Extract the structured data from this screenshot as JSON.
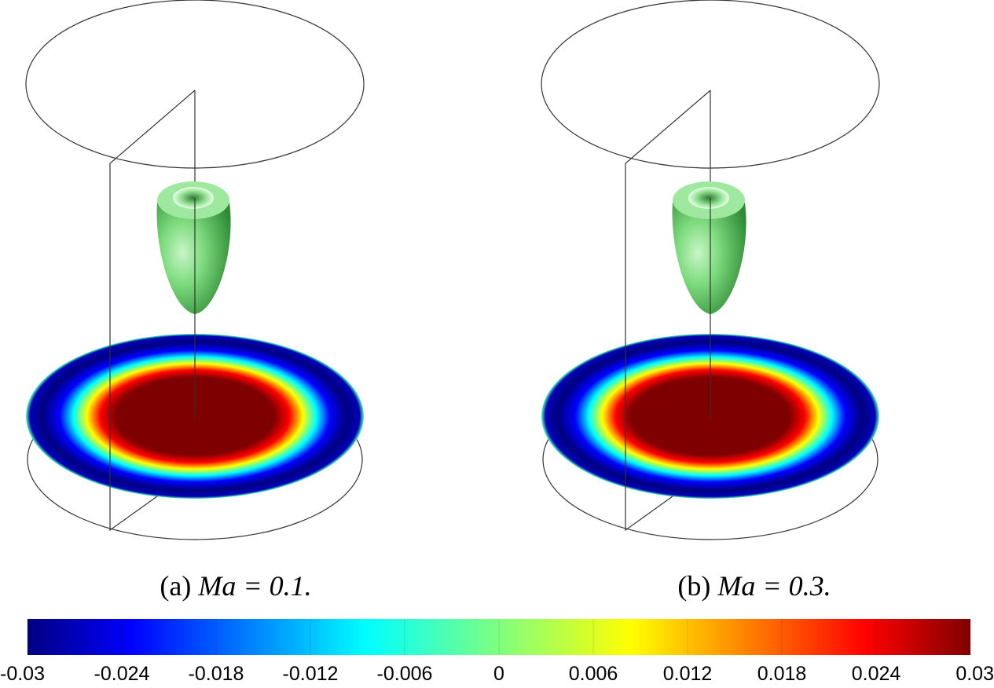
{
  "panels": [
    {
      "label": "(a)",
      "expression": "Ma = 0.1."
    },
    {
      "label": "(b)",
      "expression": "Ma = 0.3."
    }
  ],
  "colorbar": {
    "range": [
      -0.03,
      0.03
    ],
    "ticks": [
      -0.03,
      -0.024,
      -0.018,
      -0.012,
      -0.006,
      0,
      0.006,
      0.012,
      0.018,
      0.024,
      0.03
    ],
    "colormap": "jet"
  }
}
